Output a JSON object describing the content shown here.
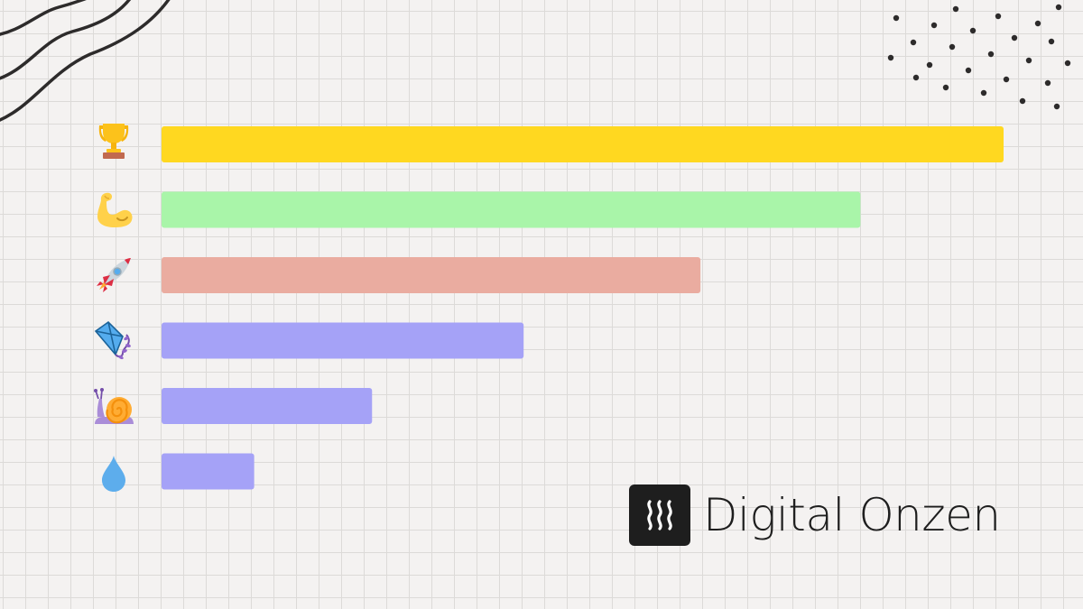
{
  "chart_data": {
    "type": "bar",
    "orientation": "horizontal",
    "categories": [
      "trophy-icon",
      "flexed-biceps-icon",
      "rocket-icon",
      "kite-icon",
      "snail-icon",
      "droplet-icon"
    ],
    "values": [
      100,
      83,
      64,
      43,
      25,
      11
    ],
    "colors": [
      "#ffd820",
      "#a9f5a9",
      "#eaaca0",
      "#a5a2f7",
      "#a5a2f7",
      "#a5a2f7"
    ],
    "title": "",
    "xlabel": "",
    "ylabel": "",
    "xlim": [
      0,
      100
    ],
    "grid": true,
    "legend": "none"
  },
  "brand": {
    "name": "Digital Onzen",
    "logo": "onsen-steam-icon",
    "logo_bg": "#1e1e1e"
  }
}
